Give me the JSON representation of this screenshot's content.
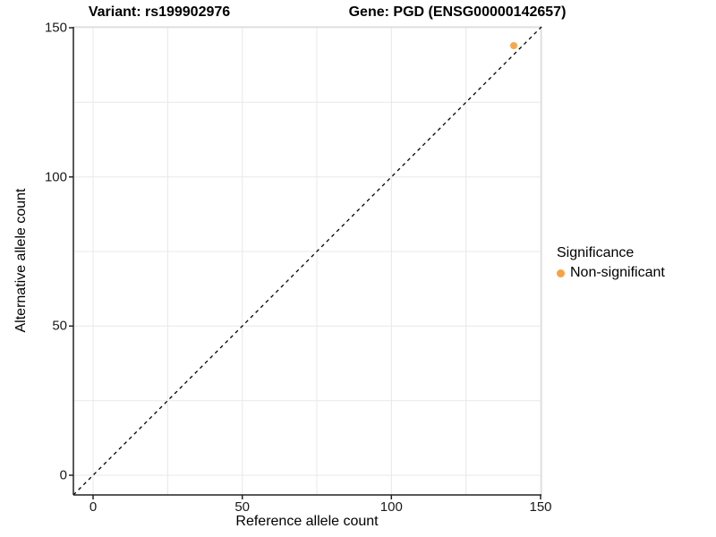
{
  "titles": {
    "variant": "Variant: rs199902976",
    "gene": "Gene: PGD (ENSG00000142657)"
  },
  "axes": {
    "x_label": "Reference allele count",
    "y_label": "Alternative allele count"
  },
  "legend": {
    "title": "Significance",
    "items": [
      {
        "label": "Non-significant",
        "color": "#F9A243"
      }
    ]
  },
  "chart_data": {
    "type": "scatter",
    "title": "Variant: rs199902976 | Gene: PGD (ENSG00000142657)",
    "xlabel": "Reference allele count",
    "ylabel": "Alternative allele count",
    "xlim": [
      -6.6,
      150.3
    ],
    "ylim": [
      -6.6,
      150.3
    ],
    "x_ticks": [
      0,
      50,
      100,
      150
    ],
    "y_ticks": [
      0,
      50,
      100,
      150
    ],
    "grid_values": [
      0,
      25,
      50,
      75,
      100,
      125,
      150
    ],
    "grid": "on",
    "legend_position": "right",
    "reference_line": {
      "type": "identity",
      "from": "corner",
      "to": "corner",
      "style": "dashed",
      "color": "#000000"
    },
    "series": [
      {
        "name": "Non-significant",
        "color": "#F9A243",
        "points": [
          {
            "x": 141,
            "y": 144
          }
        ]
      }
    ],
    "colors": {
      "grid": "#e8e8e8",
      "panel_border": "#d6d6d6",
      "axis": "#222222",
      "point": "#F9A243"
    }
  }
}
